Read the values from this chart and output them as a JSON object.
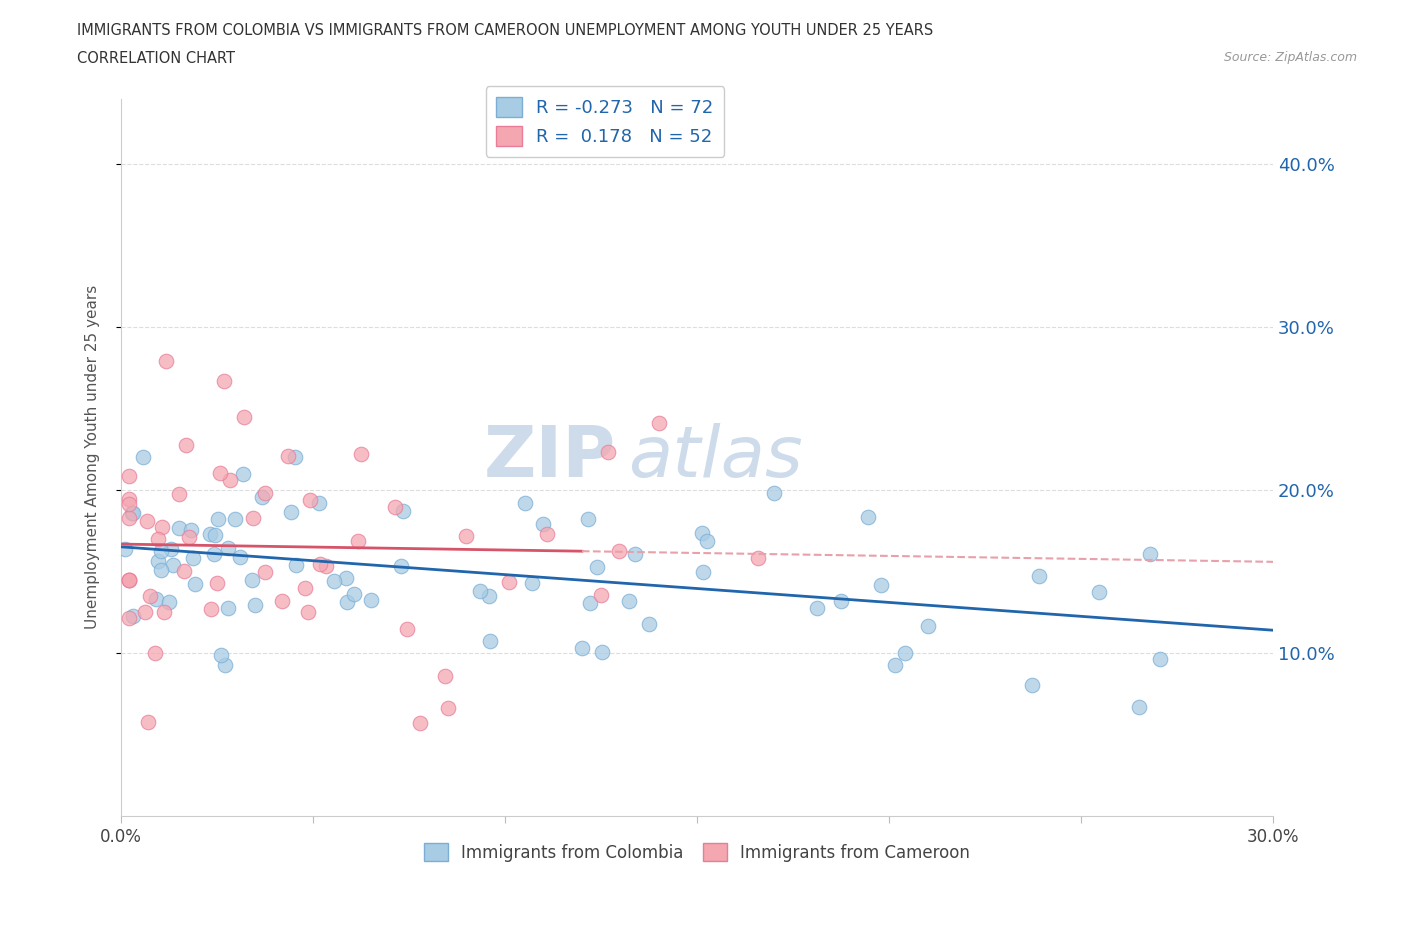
{
  "title_line1": "IMMIGRANTS FROM COLOMBIA VS IMMIGRANTS FROM CAMEROON UNEMPLOYMENT AMONG YOUTH UNDER 25 YEARS",
  "title_line2": "CORRELATION CHART",
  "source_text": "Source: ZipAtlas.com",
  "ylabel": "Unemployment Among Youth under 25 years",
  "xlim": [
    0.0,
    0.3
  ],
  "ylim": [
    0.0,
    0.44
  ],
  "xticks": [
    0.0,
    0.05,
    0.1,
    0.15,
    0.2,
    0.25,
    0.3
  ],
  "xticklabels": [
    "0.0%",
    "",
    "",
    "",
    "",
    "",
    "30.0%"
  ],
  "yticks_right": [
    0.1,
    0.2,
    0.3,
    0.4
  ],
  "ytick_right_labels": [
    "10.0%",
    "20.0%",
    "30.0%",
    "40.0%"
  ],
  "colombia_color": "#a8cce4",
  "cameroon_color": "#f4a7b0",
  "colombia_edge_color": "#7aaed6",
  "cameroon_edge_color": "#e87d9a",
  "colombia_line_color": "#2166ac",
  "cameroon_line_solid_color": "#d6546a",
  "cameroon_line_dashed_color": "#e8a0aa",
  "colombia_R": -0.273,
  "colombia_N": 72,
  "cameroon_R": 0.178,
  "cameroon_N": 52,
  "watermark_zip": "ZIP",
  "watermark_atlas": "atlas",
  "watermark_color": "#c8d8e8",
  "grid_color": "#dddddd",
  "background_color": "#ffffff"
}
